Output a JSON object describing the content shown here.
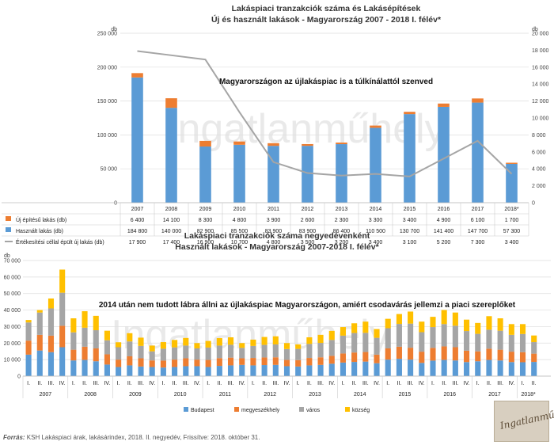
{
  "top": {
    "title1": "Lakáspiaci tranzakciók száma és Lakásépítések",
    "title2": "Új és használt lakások - Magyarország 2007 - 2018 I. félév*",
    "unit_left": "db",
    "unit_right": "db",
    "annotation": "Magyarországon az újlakáspiac is a túlkínálattól szenved",
    "watermark": "Ingatlanműhely"
  },
  "bottom": {
    "title1": "Lakáspiaci tranzakciók száma negyedévenként",
    "title2": "Használt lakások - Magyarország 2007-2018 I. félév*",
    "unit_left": "db",
    "annotation": "2014 után nem tudott lábra állni az újlakáspiac Magyarországon, amiért csodavárás jellemzi a piaci szereplőket",
    "watermark": "Ingatlanműhely"
  },
  "source": {
    "label": "Forrás:",
    "text": " KSH Lakáspiaci árak, lakásárindex, 2018. II. negyedév, Frissítve: 2018. október 31."
  },
  "logo_text": "Ingatlanműhely",
  "chart_data": [
    {
      "type": "bar",
      "stacked": true,
      "categories": [
        "2007",
        "2008",
        "2009",
        "2010",
        "2011",
        "2012",
        "2013",
        "2014",
        "2015",
        "2016",
        "2017",
        "2018*"
      ],
      "series": [
        {
          "name": "Használt lakás (db)",
          "color": "#5b9bd5",
          "axis": "left",
          "values": [
            184800,
            140000,
            82900,
            85500,
            83900,
            83900,
            86400,
            110500,
            130700,
            141400,
            147700,
            57300
          ],
          "labels": [
            "184 800",
            "140 000",
            "82 900",
            "85 500",
            "83 900",
            "83 900",
            "86 400",
            "110 500",
            "130 700",
            "141 400",
            "147 700",
            "57 300"
          ]
        },
        {
          "name": "Új építésű lakás (db)",
          "color": "#ed7d31",
          "axis": "left",
          "values": [
            6400,
            14100,
            8300,
            4800,
            3900,
            2600,
            2300,
            3300,
            3400,
            4900,
            6100,
            1700
          ],
          "labels": [
            "6 400",
            "14 100",
            "8 300",
            "4 800",
            "3 900",
            "2 600",
            "2 300",
            "3 300",
            "3 400",
            "4 900",
            "6 100",
            "1 700"
          ]
        },
        {
          "name": "Értékesítési céllal épült új lakás (db)",
          "type": "line",
          "color": "#a5a5a5",
          "axis": "right",
          "values": [
            17900,
            17400,
            16900,
            10700,
            4800,
            3500,
            3200,
            3400,
            3100,
            5200,
            7300,
            3400
          ],
          "labels": [
            "17 900",
            "17 400",
            "16 900",
            "10 700",
            "4 800",
            "3 500",
            "3 200",
            "3 400",
            "3 100",
            "5 200",
            "7 300",
            "3 400"
          ]
        }
      ],
      "table_order": [
        1,
        0,
        2
      ],
      "ylim": [
        0,
        250000
      ],
      "y_ticks": [
        "0",
        "50 000",
        "100 000",
        "150 000",
        "200 000",
        "250 000"
      ],
      "y2lim": [
        0,
        20000
      ],
      "y2_ticks": [
        "0",
        "2 000",
        "4 000",
        "6 000",
        "8 000",
        "10 000",
        "12 000",
        "14 000",
        "16 000",
        "18 000",
        "20 000"
      ],
      "grid": true
    },
    {
      "type": "bar",
      "stacked": true,
      "years": [
        "2007",
        "2008",
        "2009",
        "2010",
        "2011",
        "2012",
        "2013",
        "2014",
        "2015",
        "2016",
        "2017",
        "2018*"
      ],
      "quarter_labels": [
        "I.",
        "II.",
        "III.",
        "IV."
      ],
      "series": [
        {
          "name": "Budapest",
          "color": "#5b9bd5",
          "values": [
            13000,
            15500,
            14500,
            17500,
            9500,
            9800,
            9000,
            7000,
            5500,
            6500,
            5800,
            5500,
            5200,
            5500,
            6000,
            6000,
            5500,
            6200,
            6500,
            6800,
            6500,
            6700,
            6800,
            6000,
            5800,
            6500,
            6800,
            7500,
            8200,
            8600,
            8800,
            7800,
            10000,
            10500,
            10000,
            8000,
            9400,
            9800,
            9500,
            8500,
            9000,
            9800,
            9500,
            8500,
            8400,
            8600
          ]
        },
        {
          "name": "megyeszékhely",
          "color": "#ed7d31",
          "values": [
            8500,
            9500,
            10000,
            13000,
            6500,
            8000,
            7800,
            6200,
            4500,
            5500,
            5000,
            4000,
            4200,
            4500,
            4800,
            4000,
            4300,
            4700,
            4700,
            4000,
            4500,
            4600,
            4600,
            3800,
            3900,
            4500,
            4600,
            4800,
            5500,
            5700,
            5800,
            5200,
            6800,
            7300,
            7200,
            6800,
            7700,
            8200,
            8000,
            6900,
            6000,
            6800,
            6500,
            6300,
            6100,
            5000
          ]
        },
        {
          "name": "város",
          "color": "#a5a5a5",
          "values": [
            11000,
            13500,
            16500,
            20000,
            10500,
            11500,
            11000,
            8500,
            7500,
            9000,
            7500,
            5500,
            7200,
            7400,
            7700,
            6800,
            7500,
            7600,
            7800,
            6300,
            7300,
            7600,
            7800,
            6600,
            6800,
            8500,
            8700,
            9600,
            10800,
            11800,
            11600,
            10200,
            12200,
            13800,
            14600,
            11800,
            12600,
            13500,
            13000,
            11900,
            10600,
            11500,
            11500,
            10200,
            11000,
            7000
          ]
        },
        {
          "name": "község",
          "color": "#ffc000",
          "values": [
            1500,
            1500,
            6000,
            14000,
            8500,
            10000,
            8700,
            5800,
            3000,
            5000,
            5000,
            3500,
            4000,
            4500,
            4600,
            3200,
            4000,
            4500,
            4500,
            2900,
            3800,
            4800,
            4900,
            3600,
            2700,
            4000,
            4900,
            5500,
            5200,
            5900,
            6800,
            5300,
            5700,
            6000,
            7300,
            6400,
            6200,
            8500,
            8000,
            6900,
            6600,
            8200,
            7500,
            6500,
            6000,
            4000
          ]
        }
      ],
      "ylim": [
        0,
        70000
      ],
      "y_ticks": [
        "0",
        "10 000",
        "20 000",
        "30 000",
        "40 000",
        "50 000",
        "60 000",
        "70 000"
      ],
      "legend_position": "bottom",
      "grid": true
    }
  ]
}
